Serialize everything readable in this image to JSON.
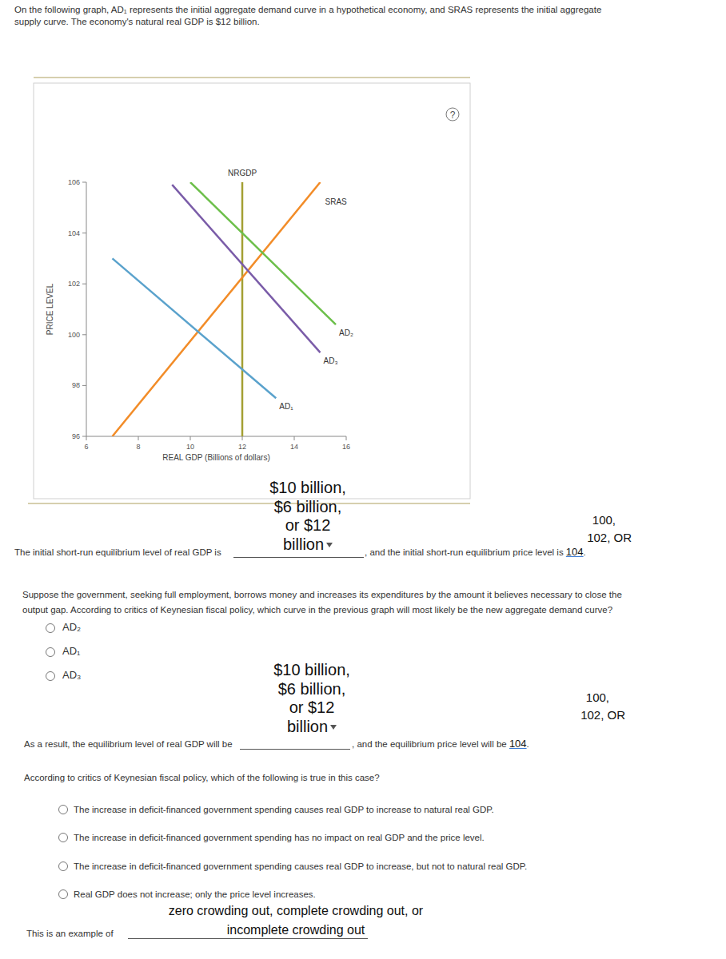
{
  "chart_data": {
    "type": "line",
    "xlabel": "REAL GDP (Billions of dollars)",
    "ylabel": "PRICE LEVEL",
    "xlim": [
      6,
      16
    ],
    "xticks": [
      6,
      8,
      10,
      12,
      14,
      16
    ],
    "ylim": [
      96,
      106
    ],
    "yticks": [
      96,
      98,
      100,
      102,
      104,
      106
    ],
    "grid": false,
    "series": [
      {
        "name": "NRGDP",
        "color": "#a4a034",
        "x": [
          12,
          12
        ],
        "values": [
          96,
          106
        ]
      },
      {
        "name": "SRAS",
        "color": "#f28c28",
        "x": [
          7,
          15
        ],
        "values": [
          96,
          106
        ]
      },
      {
        "name": "AD₂",
        "color": "#6cbf4a",
        "x": [
          10,
          15.6
        ],
        "values": [
          106,
          100.4
        ]
      },
      {
        "name": "AD₃",
        "color": "#7a5ca8",
        "x": [
          9.3,
          15
        ],
        "values": [
          105.9,
          99.3
        ]
      },
      {
        "name": "AD₁",
        "color": "#5aa2cc",
        "x": [
          7,
          13.3
        ],
        "values": [
          103,
          97.5
        ]
      }
    ]
  },
  "page": {
    "help": "?",
    "intro": [
      "On the following graph, AD₁ represents the initial aggregate demand curve in a hypothetical economy, and SRAS represents the initial aggregate",
      "supply curve. The economy's natural real GDP is $12 billion."
    ],
    "q1": {
      "prefix": "The initial short-run equilibrium level of real GDP is",
      "gdp_choices": [
        "$10 billion,",
        "$6 billion,",
        "or $12",
        "billion"
      ],
      "mid": ", and the initial short-run equilibrium price level is",
      "price_choices": [
        "100,",
        "102, OR"
      ],
      "price": "104",
      "end": "."
    },
    "q2": {
      "text": [
        "Suppose the government, seeking full employment, borrows money and increases its expenditures by the amount it believes necessary to close the",
        "output gap. According to critics of Keynesian fiscal policy, which curve in the previous graph will most likely be the new aggregate demand curve?"
      ],
      "options": [
        "AD₂",
        "AD₁",
        "AD₃"
      ]
    },
    "q3": {
      "prefix": "As a result, the equilibrium level of real GDP will be",
      "gdp_choices": [
        "$10 billion,",
        "$6 billion,",
        "or $12",
        "billion"
      ],
      "mid": ", and the equilibrium price level will be",
      "price_choices": [
        "100,",
        "102, OR"
      ],
      "price": "104",
      "end": "."
    },
    "q4": {
      "question": "According to critics of Keynesian fiscal policy, which of the following is true in this case?",
      "options": [
        "The increase in deficit-financed government spending causes real GDP to increase to natural real GDP.",
        "The increase in deficit-financed government spending has no impact on real GDP and the price level.",
        "The increase in deficit-financed government spending causes real GDP to increase, but not to natural real GDP.",
        "Real GDP does not increase; only the price level increases."
      ]
    },
    "q5": {
      "choices": [
        "zero crowding out, complete crowding out, or",
        "incomplete crowding out"
      ],
      "prefix": "This is an example of"
    }
  }
}
